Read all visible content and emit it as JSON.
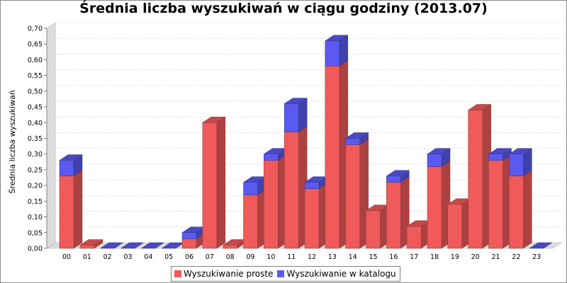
{
  "chart_data": {
    "type": "bar",
    "stacked": true,
    "three_d": true,
    "title": "Średnia liczba wyszukiwań w ciągu godziny (2013.07)",
    "xlabel": "",
    "ylabel": "Średnia liczba wyszukiwań",
    "ylim": [
      0,
      0.7
    ],
    "yticks": [
      "0,00",
      "0,05",
      "0,10",
      "0,15",
      "0,20",
      "0,25",
      "0,30",
      "0,35",
      "0,40",
      "0,45",
      "0,50",
      "0,55",
      "0,60",
      "0,65",
      "0,70"
    ],
    "grid": true,
    "legend_position": "bottom",
    "categories": [
      "00",
      "01",
      "02",
      "03",
      "04",
      "05",
      "06",
      "07",
      "08",
      "09",
      "10",
      "11",
      "12",
      "13",
      "14",
      "15",
      "16",
      "17",
      "18",
      "19",
      "20",
      "21",
      "22",
      "23"
    ],
    "series": [
      {
        "name": "Wyszukiwanie proste",
        "color": "#f05a5a",
        "values": [
          0.23,
          0.01,
          0,
          0,
          0,
          0,
          0.03,
          0.4,
          0.01,
          0.17,
          0.28,
          0.37,
          0.19,
          0.58,
          0.33,
          0.12,
          0.21,
          0.07,
          0.26,
          0.14,
          0.44,
          0.28,
          0.23,
          0
        ]
      },
      {
        "name": "Wyszukiwanie w katalogu",
        "color": "#5a5af0",
        "values": [
          0.05,
          0,
          0,
          0,
          0,
          0,
          0.02,
          0,
          0,
          0.04,
          0.02,
          0.09,
          0.02,
          0.08,
          0.02,
          0,
          0.02,
          0,
          0.04,
          0,
          0,
          0.02,
          0.07,
          0
        ]
      }
    ]
  }
}
